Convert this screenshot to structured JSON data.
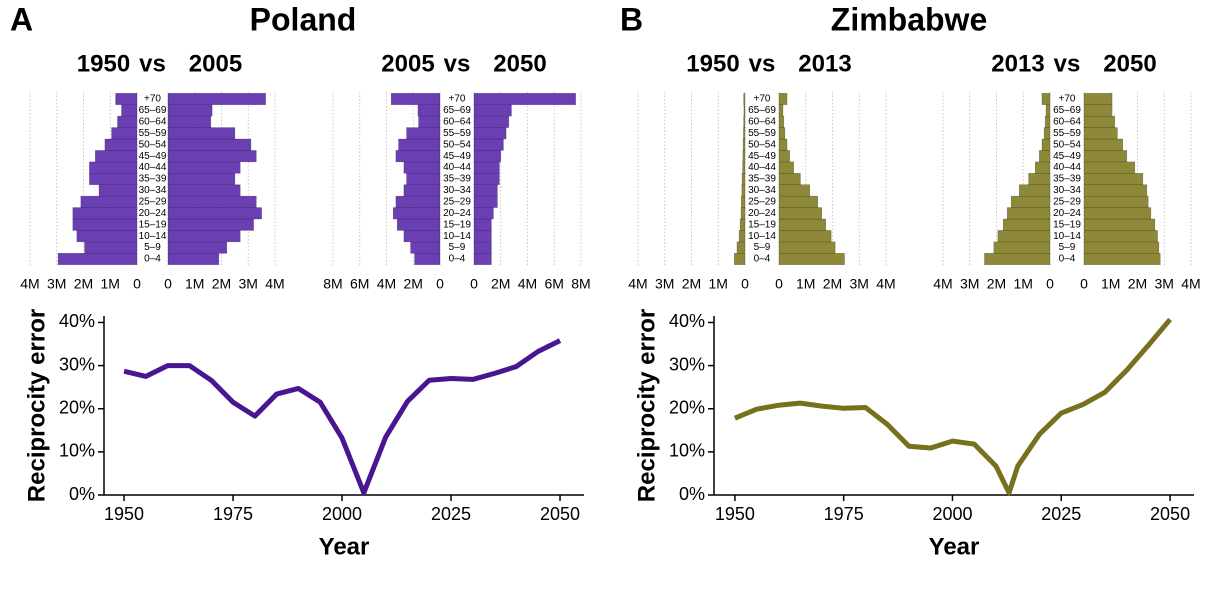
{
  "panels": [
    {
      "letter": "A",
      "title": "Poland"
    },
    {
      "letter": "B",
      "title": "Zimbabwe"
    }
  ],
  "chart_data": [
    {
      "type": "pyramid",
      "connector": "vs",
      "categories": [
        "0–4",
        "5–9",
        "10–14",
        "15–19",
        "20–24",
        "25–29",
        "30–34",
        "35–39",
        "40–44",
        "45–49",
        "50–54",
        "55–59",
        "60–64",
        "65–69",
        "+70"
      ],
      "series": [
        {
          "name": "1950",
          "color": "#6b3fb4",
          "values": [
            2.95,
            1.96,
            2.25,
            2.4,
            2.4,
            2.1,
            1.42,
            1.78,
            1.78,
            1.56,
            1.2,
            0.95,
            0.73,
            0.58,
            0.8
          ]
        },
        {
          "name": "2005",
          "color": "#6b3fb4",
          "values": [
            1.9,
            2.2,
            2.7,
            3.2,
            3.5,
            3.3,
            2.7,
            2.5,
            2.7,
            3.3,
            3.1,
            2.5,
            1.6,
            1.65,
            3.65
          ]
        }
      ],
      "xlim": [
        0,
        4
      ],
      "xticks": [
        0,
        {
          "value": 1,
          "label": "1M"
        },
        {
          "value": 2,
          "label": "2M"
        },
        {
          "value": 3,
          "label": "3M"
        },
        {
          "value": 4,
          "label": "4M"
        }
      ],
      "grid": true
    },
    {
      "type": "pyramid",
      "connector": "vs",
      "categories": [
        "0–4",
        "5–9",
        "10–14",
        "15–19",
        "20–24",
        "25–29",
        "30–34",
        "35–39",
        "40–44",
        "45–49",
        "50–54",
        "55–59",
        "60–64",
        "65–69",
        "+70"
      ],
      "series": [
        {
          "name": "2005",
          "color": "#6b3fb4",
          "values": [
            1.9,
            2.2,
            2.7,
            3.2,
            3.5,
            3.3,
            2.7,
            2.5,
            2.7,
            3.3,
            3.1,
            2.5,
            1.6,
            1.65,
            3.65
          ]
        },
        {
          "name": "2050",
          "color": "#6b3fb4",
          "values": [
            1.3,
            1.3,
            1.3,
            1.3,
            1.45,
            1.75,
            1.75,
            1.9,
            1.9,
            2.0,
            2.2,
            2.4,
            2.6,
            2.8,
            7.6
          ]
        }
      ],
      "xlim": [
        0,
        8
      ],
      "xticks": [
        0,
        {
          "value": 2,
          "label": "2M"
        },
        {
          "value": 4,
          "label": "4M"
        },
        {
          "value": 6,
          "label": "6M"
        },
        {
          "value": 8,
          "label": "8M"
        }
      ],
      "grid": true
    },
    {
      "type": "line",
      "x_label": "Year",
      "y_label": "Reciprocity error",
      "color": "#4a1591",
      "x": [
        1950,
        1955,
        1960,
        1965,
        1970,
        1975,
        1980,
        1985,
        1990,
        1995,
        2000,
        2005,
        2010,
        2015,
        2020,
        2025,
        2030,
        2035,
        2040,
        2045,
        2050
      ],
      "values": [
        28.7,
        27.5,
        30,
        30,
        26.6,
        21.5,
        18.3,
        23.4,
        24.7,
        21.5,
        13.2,
        0.5,
        13.4,
        21.7,
        26.6,
        27,
        26.8,
        28.2,
        29.8,
        33.3,
        35.8
      ],
      "xlim": [
        1945.4,
        2055.5
      ],
      "xticks": [
        1950,
        1975,
        2000,
        2025,
        2050
      ],
      "ylim": [
        0,
        41.5
      ],
      "yticks": [
        {
          "value": 0,
          "label": "0%"
        },
        {
          "value": 10,
          "label": "10%"
        },
        {
          "value": 20,
          "label": "20%"
        },
        {
          "value": 30,
          "label": "30%"
        },
        {
          "value": 40,
          "label": "40%"
        }
      ]
    },
    {
      "type": "pyramid",
      "connector": "vs",
      "categories": [
        "0–4",
        "5–9",
        "10–14",
        "15–19",
        "20–24",
        "25–29",
        "30–34",
        "35–39",
        "40–44",
        "45–49",
        "50–54",
        "55–59",
        "60–64",
        "65–69",
        "+70"
      ],
      "series": [
        {
          "name": "1950",
          "color": "#8e8839",
          "values": [
            0.4,
            0.3,
            0.22,
            0.18,
            0.15,
            0.14,
            0.12,
            0.11,
            0.09,
            0.08,
            0.07,
            0.06,
            0.05,
            0.04,
            0.05
          ]
        },
        {
          "name": "2013",
          "color": "#8e8839",
          "values": [
            2.45,
            2.1,
            1.95,
            1.75,
            1.6,
            1.45,
            1.15,
            0.8,
            0.55,
            0.4,
            0.3,
            0.22,
            0.18,
            0.15,
            0.3
          ]
        }
      ],
      "xlim": [
        0,
        4
      ],
      "xticks": [
        0,
        {
          "value": 1,
          "label": "1M"
        },
        {
          "value": 2,
          "label": "2M"
        },
        {
          "value": 3,
          "label": "3M"
        },
        {
          "value": 4,
          "label": "4M"
        }
      ],
      "grid": true
    },
    {
      "type": "pyramid",
      "connector": "vs",
      "categories": [
        "0–4",
        "5–9",
        "10–14",
        "15–19",
        "20–24",
        "25–29",
        "30–34",
        "35–39",
        "40–44",
        "45–49",
        "50–54",
        "55–59",
        "60–64",
        "65–69",
        "+70"
      ],
      "series": [
        {
          "name": "2013",
          "color": "#8e8839",
          "values": [
            2.45,
            2.1,
            1.95,
            1.75,
            1.6,
            1.45,
            1.15,
            0.8,
            0.55,
            0.4,
            0.3,
            0.22,
            0.18,
            0.15,
            0.3
          ]
        },
        {
          "name": "2050",
          "color": "#8e8839",
          "values": [
            2.85,
            2.8,
            2.75,
            2.65,
            2.5,
            2.4,
            2.35,
            2.2,
            1.9,
            1.6,
            1.45,
            1.25,
            1.15,
            1.05,
            1.05
          ]
        }
      ],
      "xlim": [
        0,
        4
      ],
      "xticks": [
        0,
        {
          "value": 1,
          "label": "1M"
        },
        {
          "value": 2,
          "label": "2M"
        },
        {
          "value": 3,
          "label": "3M"
        },
        {
          "value": 4,
          "label": "4M"
        }
      ],
      "grid": true
    },
    {
      "type": "line",
      "x_label": "Year",
      "y_label": "Reciprocity error",
      "color": "#77701c",
      "x": [
        1950,
        1955,
        1960,
        1965,
        1970,
        1975,
        1980,
        1985,
        1990,
        1995,
        2000,
        2005,
        2010,
        2013,
        2015,
        2020,
        2025,
        2030,
        2035,
        2040,
        2045,
        2050
      ],
      "values": [
        17.8,
        19.9,
        20.8,
        21.3,
        20.6,
        20.1,
        20.3,
        16.4,
        11.3,
        10.9,
        12.5,
        11.8,
        6.7,
        0.5,
        6.7,
        14.1,
        19,
        21,
        23.8,
        28.9,
        34.7,
        40.7
      ],
      "xlim": [
        1945.2,
        2055.5
      ],
      "xticks": [
        1950,
        1975,
        2000,
        2025,
        2050
      ],
      "ylim": [
        0,
        41.5
      ],
      "yticks": [
        {
          "value": 0,
          "label": "0%"
        },
        {
          "value": 10,
          "label": "10%"
        },
        {
          "value": 20,
          "label": "20%"
        },
        {
          "value": 30,
          "label": "30%"
        },
        {
          "value": 40,
          "label": "40%"
        }
      ]
    }
  ]
}
